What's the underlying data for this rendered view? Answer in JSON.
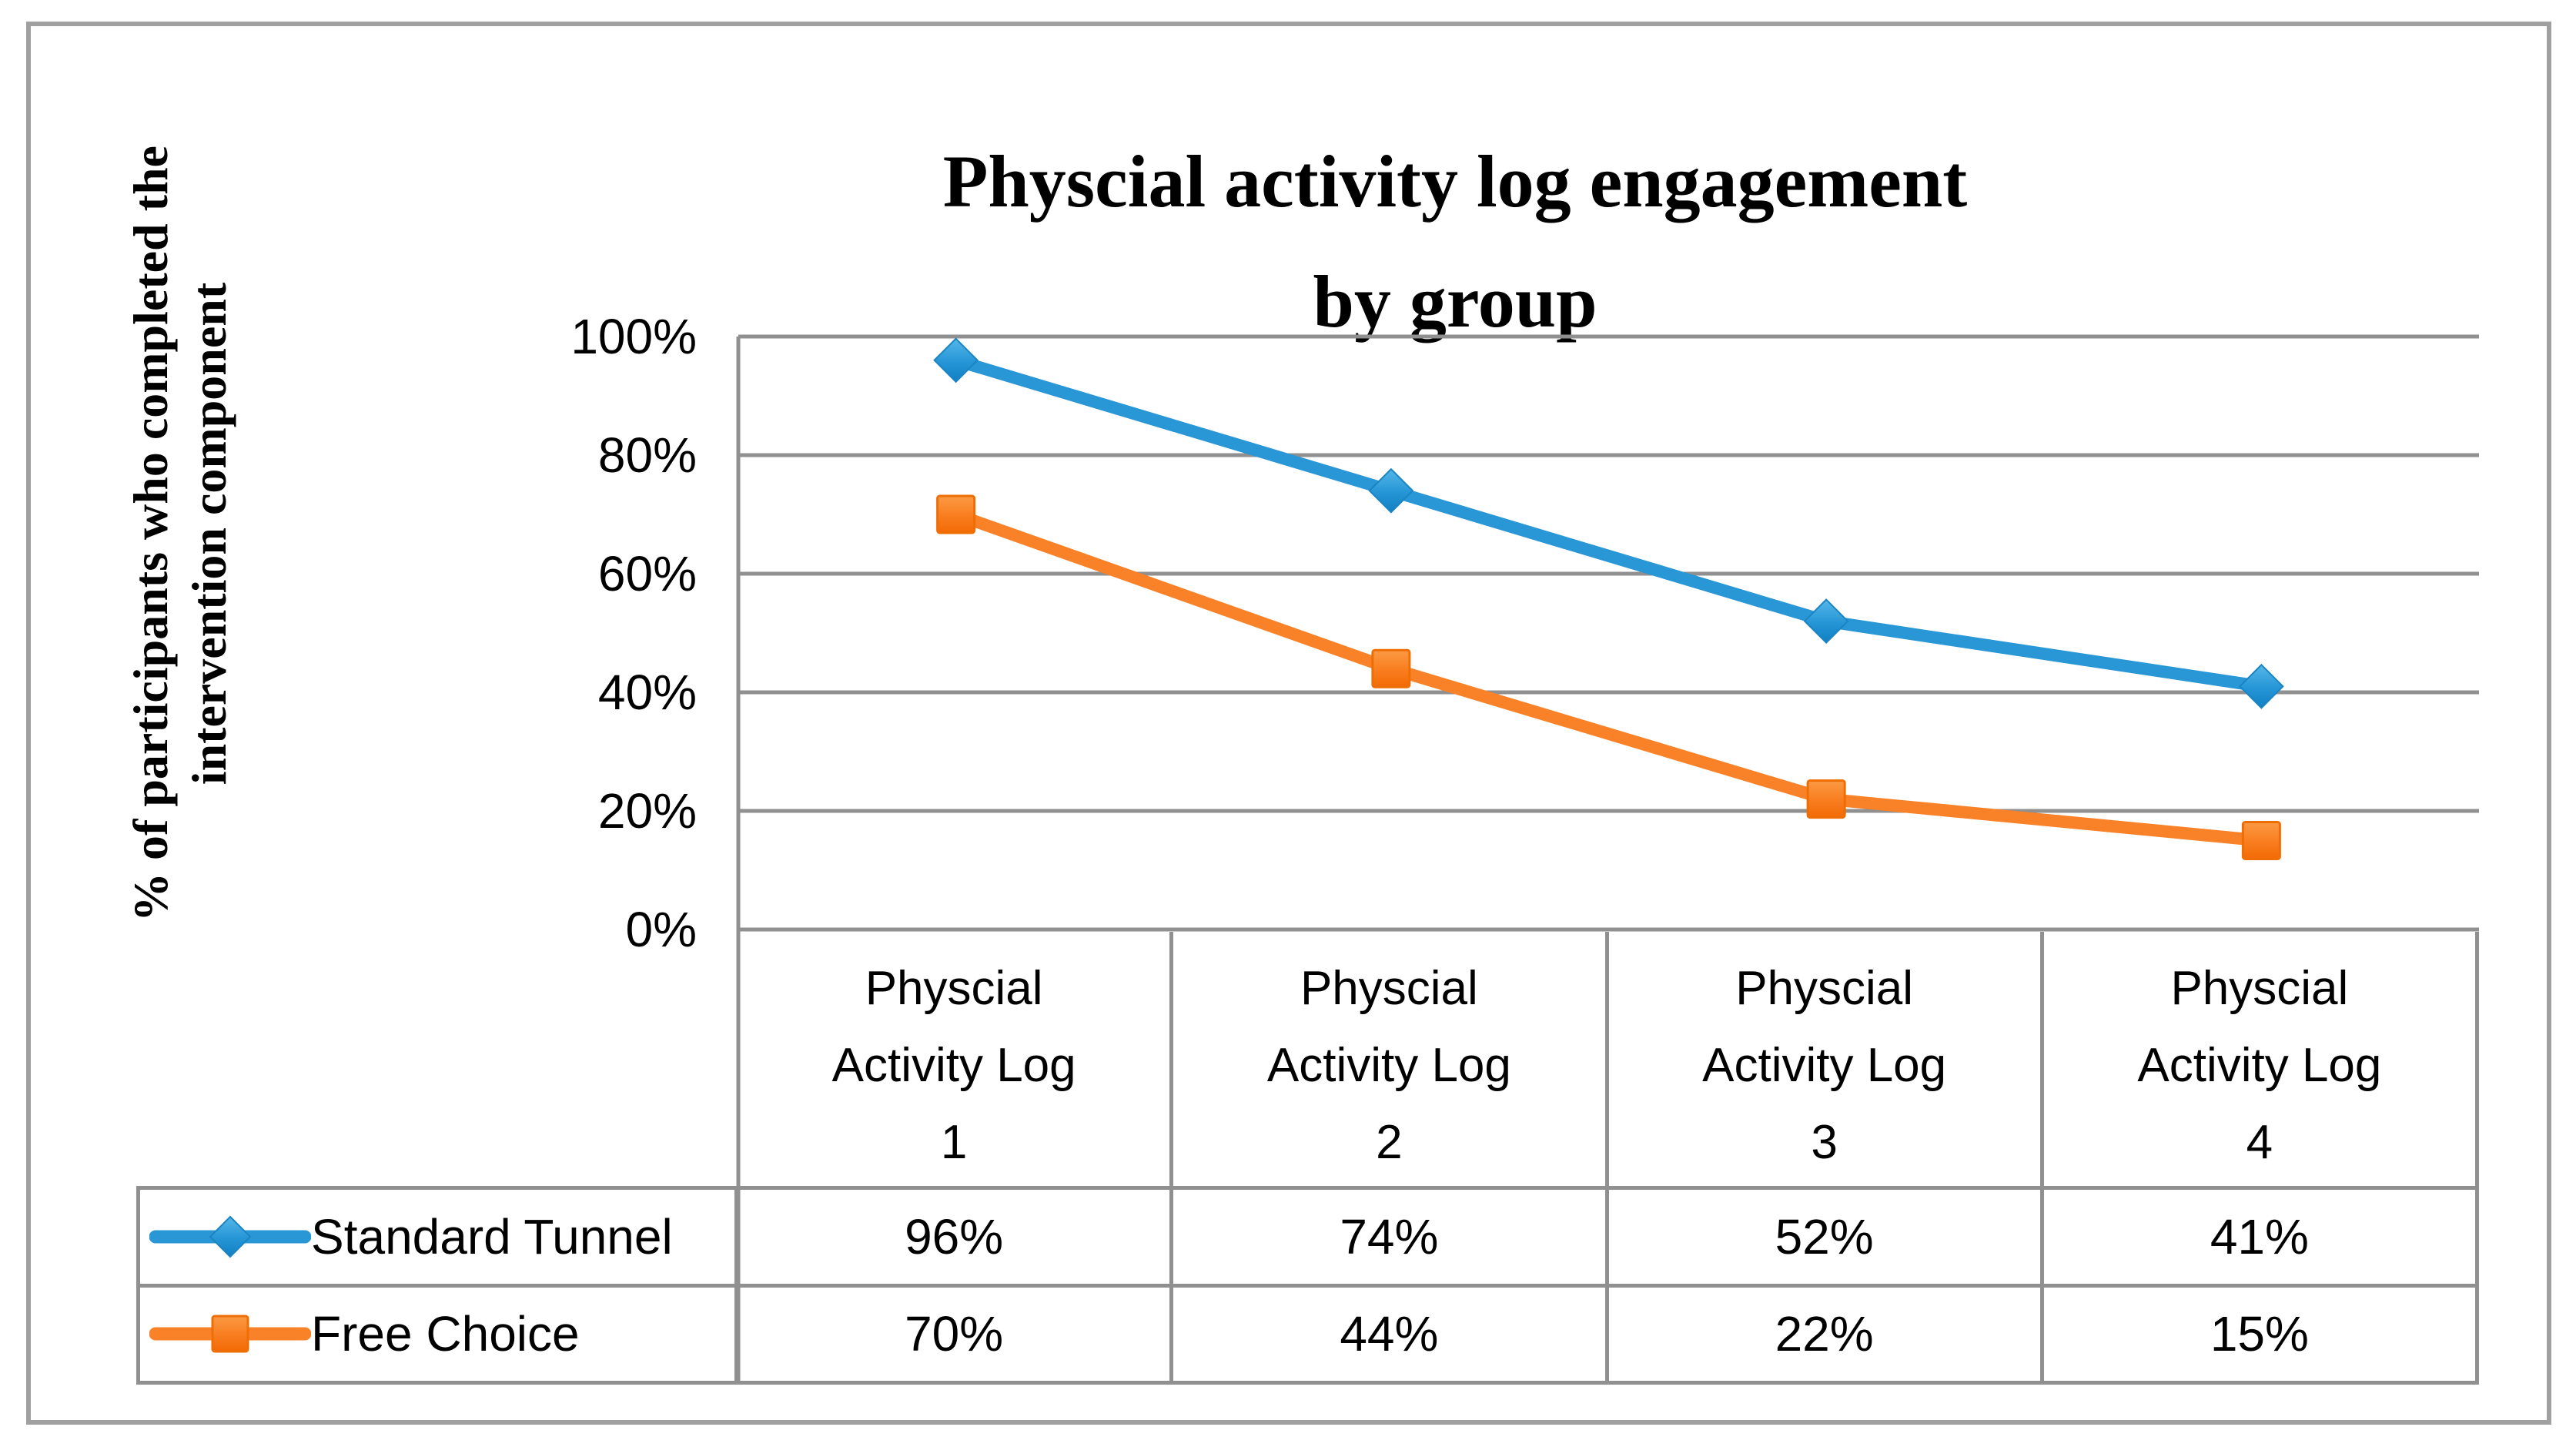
{
  "chart_data": {
    "type": "line",
    "title": "Physcial activity log engagement by group",
    "title_lines": [
      "Physcial activity log engagement",
      "by group"
    ],
    "ylabel": "% of participants who completed the intervention component",
    "ylabel_lines": [
      "% of participants who completed the",
      "intervention component"
    ],
    "xlabel": "",
    "ylim": [
      0,
      100
    ],
    "y_tick_step": 20,
    "y_ticks": [
      "100%",
      "80%",
      "60%",
      "40%",
      "20%",
      "0%"
    ],
    "grid": true,
    "legend_position": "data-table-left",
    "categories": [
      "Physcial Activity Log 1",
      "Physcial Activity Log 2",
      "Physcial Activity Log 3",
      "Physcial Activity Log 4"
    ],
    "categories_lines": [
      [
        "Physcial",
        "Activity Log",
        "1"
      ],
      [
        "Physcial",
        "Activity Log",
        "2"
      ],
      [
        "Physcial",
        "Activity Log",
        "3"
      ],
      [
        "Physcial",
        "Activity Log",
        "4"
      ]
    ],
    "series": [
      {
        "name": "Standard Tunnel",
        "marker": "diamond",
        "color": "#2996d6",
        "values": [
          96,
          74,
          52,
          41
        ],
        "values_display": [
          "96%",
          "74%",
          "52%",
          "41%"
        ]
      },
      {
        "name": "Free Choice",
        "marker": "square",
        "color": "#f98127",
        "values": [
          70,
          44,
          22,
          15
        ],
        "values_display": [
          "70%",
          "44%",
          "22%",
          "15%"
        ]
      }
    ],
    "gridline_color": "#909090",
    "frame_color": "#a0a0a0",
    "text_color": "#000000"
  }
}
